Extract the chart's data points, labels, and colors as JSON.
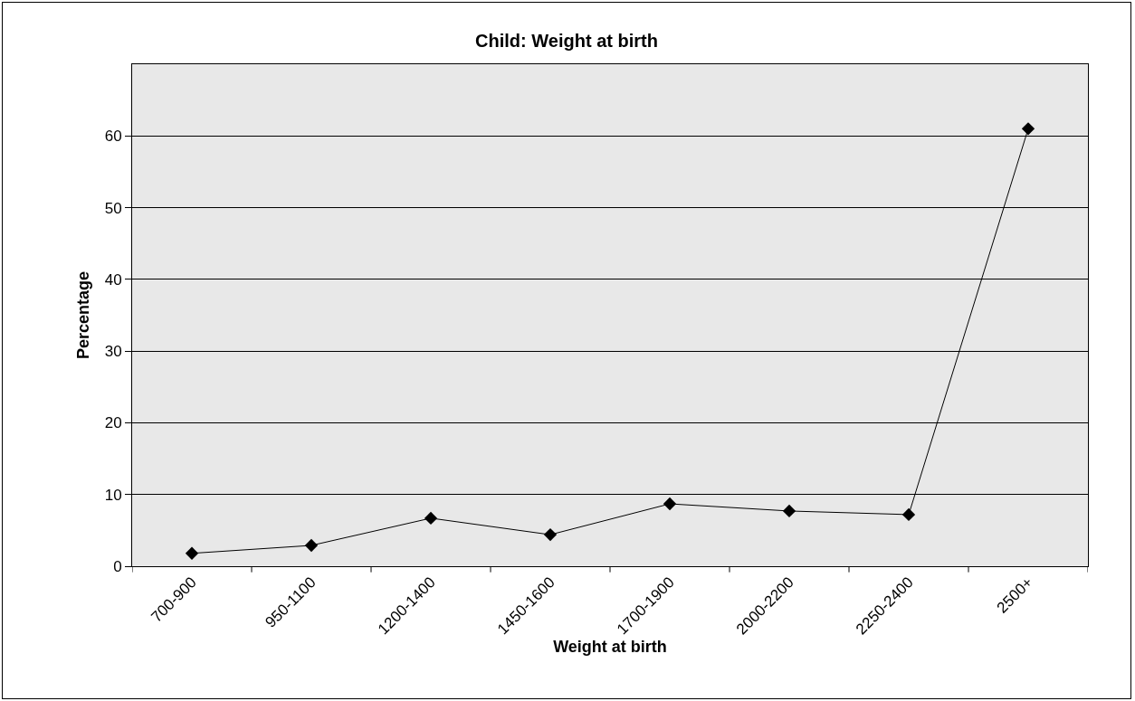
{
  "chart_data": {
    "type": "line",
    "title": "Child: Weight at birth",
    "xlabel": "Weight at birth",
    "ylabel": "Percentage",
    "categories": [
      "700-900",
      "950-1100",
      "1200-1400",
      "1450-1600",
      "1700-1900",
      "2000-2200",
      "2250-2400",
      "2500+"
    ],
    "series": [
      {
        "color": "#000000",
        "values": [
          1.8,
          2.9,
          6.7,
          4.4,
          8.7,
          7.7,
          7.2,
          61.0
        ]
      }
    ],
    "ylim": [
      0,
      70
    ],
    "yticks": [
      0,
      10,
      20,
      30,
      40,
      50,
      60
    ],
    "grid": "y",
    "marker": "diamond",
    "line_style": "solid"
  }
}
